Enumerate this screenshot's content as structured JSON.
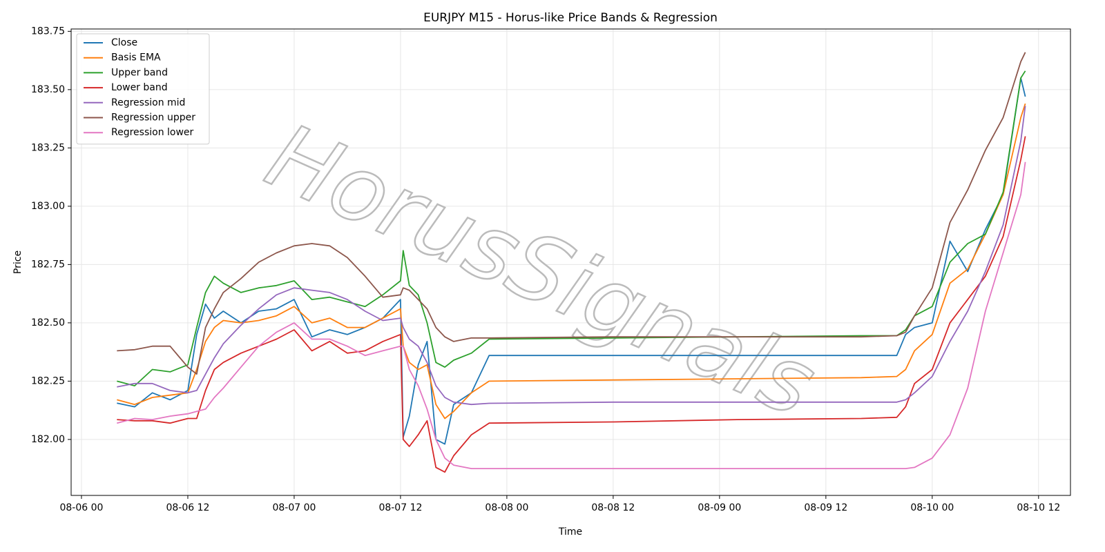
{
  "chart_data": {
    "type": "line",
    "title": "EURJPY M15 - Horus-like Price Bands & Regression",
    "x_label": "Time",
    "y_label": "Price",
    "watermark": "HorusSignals",
    "x": [
      "08-06 04:00",
      "08-06 06:00",
      "08-06 08:00",
      "08-06 10:00",
      "08-06 12:00",
      "08-06 13:00",
      "08-06 14:00",
      "08-06 15:00",
      "08-06 16:00",
      "08-06 18:00",
      "08-06 20:00",
      "08-06 22:00",
      "08-07 00:00",
      "08-07 02:00",
      "08-07 04:00",
      "08-07 06:00",
      "08-07 08:00",
      "08-07 10:00",
      "08-07 12:00",
      "08-07 12:18",
      "08-07 13:00",
      "08-07 14:00",
      "08-07 15:00",
      "08-07 16:00",
      "08-07 17:00",
      "08-07 18:00",
      "08-07 20:00",
      "08-07 22:00",
      "08-08 12:00",
      "08-09 02:00",
      "08-09 16:00",
      "08-09 20:00",
      "08-09 21:00",
      "08-09 22:00",
      "08-10 00:00",
      "08-10 02:00",
      "08-10 04:00",
      "08-10 06:00",
      "08-10 08:00",
      "08-10 10:00",
      "08-10 10:30"
    ],
    "series": [
      {
        "name": "Close",
        "color": "#1f77b4",
        "values": [
          182.156,
          182.14,
          182.2,
          182.17,
          182.21,
          182.45,
          182.58,
          182.52,
          182.55,
          182.5,
          182.55,
          182.56,
          182.6,
          182.44,
          182.47,
          182.45,
          182.48,
          182.52,
          182.6,
          182.01,
          182.1,
          182.32,
          182.42,
          182.0,
          181.98,
          182.15,
          182.2,
          182.36,
          182.36,
          182.36,
          182.36,
          182.36,
          182.45,
          182.48,
          182.5,
          182.85,
          182.72,
          182.9,
          183.05,
          183.55,
          183.47
        ]
      },
      {
        "name": "Basis EMA",
        "color": "#ff7f0e",
        "values": [
          182.17,
          182.15,
          182.18,
          182.19,
          182.2,
          182.3,
          182.42,
          182.48,
          182.51,
          182.5,
          182.51,
          182.53,
          182.57,
          182.5,
          182.52,
          182.48,
          182.48,
          182.52,
          182.56,
          182.4,
          182.33,
          182.3,
          182.32,
          182.15,
          182.09,
          182.12,
          182.2,
          182.25,
          182.255,
          182.26,
          182.265,
          182.27,
          182.3,
          182.38,
          182.45,
          182.67,
          182.73,
          182.88,
          183.05,
          183.38,
          183.44
        ]
      },
      {
        "name": "Upper band",
        "color": "#2ca02c",
        "values": [
          182.25,
          182.23,
          182.3,
          182.29,
          182.32,
          182.48,
          182.63,
          182.7,
          182.67,
          182.63,
          182.65,
          182.66,
          182.68,
          182.6,
          182.61,
          182.59,
          182.57,
          182.62,
          182.68,
          182.81,
          182.66,
          182.62,
          182.5,
          182.33,
          182.31,
          182.34,
          182.37,
          182.43,
          182.435,
          182.44,
          182.445,
          182.445,
          182.47,
          182.53,
          182.57,
          182.76,
          182.84,
          182.88,
          183.06,
          183.55,
          183.58
        ]
      },
      {
        "name": "Lower band",
        "color": "#d62728",
        "values": [
          182.085,
          182.08,
          182.08,
          182.07,
          182.09,
          182.09,
          182.21,
          182.3,
          182.33,
          182.37,
          182.4,
          182.43,
          182.47,
          182.38,
          182.42,
          182.37,
          182.38,
          182.42,
          182.45,
          182.0,
          181.97,
          182.02,
          182.08,
          181.88,
          181.86,
          181.93,
          182.02,
          182.07,
          182.075,
          182.085,
          182.09,
          182.095,
          182.14,
          182.24,
          182.3,
          182.5,
          182.6,
          182.7,
          182.87,
          183.2,
          183.3
        ]
      },
      {
        "name": "Regression mid",
        "color": "#9467bd",
        "values": [
          182.225,
          182.24,
          182.24,
          182.21,
          182.2,
          182.21,
          182.28,
          182.35,
          182.41,
          182.49,
          182.56,
          182.62,
          182.65,
          182.64,
          182.63,
          182.6,
          182.55,
          182.51,
          182.52,
          182.48,
          182.43,
          182.4,
          182.33,
          182.23,
          182.18,
          182.16,
          182.15,
          182.155,
          182.16,
          182.16,
          182.16,
          182.16,
          182.17,
          182.2,
          182.27,
          182.42,
          182.55,
          182.72,
          182.92,
          183.28,
          183.43
        ]
      },
      {
        "name": "Regression upper",
        "color": "#8c564b",
        "values": [
          182.38,
          182.385,
          182.4,
          182.4,
          182.31,
          182.28,
          182.48,
          182.56,
          182.63,
          182.69,
          182.76,
          182.8,
          182.83,
          182.84,
          182.83,
          182.78,
          182.7,
          182.61,
          182.62,
          182.65,
          182.64,
          182.6,
          182.56,
          182.48,
          182.44,
          182.42,
          182.435,
          182.435,
          182.44,
          182.44,
          182.44,
          182.445,
          182.46,
          182.53,
          182.65,
          182.93,
          183.07,
          183.24,
          183.38,
          183.62,
          183.66
        ]
      },
      {
        "name": "Regression lower",
        "color": "#e377c2",
        "values": [
          182.07,
          182.09,
          182.085,
          182.1,
          182.11,
          182.12,
          182.13,
          182.18,
          182.22,
          182.31,
          182.4,
          182.46,
          182.5,
          182.43,
          182.43,
          182.4,
          182.36,
          182.38,
          182.4,
          182.4,
          182.3,
          182.23,
          182.13,
          182.0,
          181.92,
          181.89,
          181.875,
          181.875,
          181.875,
          181.875,
          181.875,
          181.875,
          181.875,
          181.88,
          181.92,
          182.02,
          182.22,
          182.55,
          182.8,
          183.05,
          183.19
        ]
      }
    ],
    "xlim": [
      "08-05 22:50",
      "08-10 15:36"
    ],
    "xticks": [
      "08-06 00",
      "08-06 12",
      "08-07 00",
      "08-07 12",
      "08-08 00",
      "08-08 12",
      "08-09 00",
      "08-09 12",
      "08-10 00",
      "08-10 12"
    ],
    "ylim": [
      181.76,
      183.76
    ],
    "yticks": [
      {
        "value": 182,
        "label": "182.00"
      },
      182.25,
      {
        "value": 182.5,
        "label": "182.50"
      },
      182.75,
      {
        "value": 183,
        "label": "183.00"
      },
      183.25,
      {
        "value": 183.5,
        "label": "183.50"
      },
      183.75
    ],
    "grid": true,
    "legend": "upper left"
  }
}
